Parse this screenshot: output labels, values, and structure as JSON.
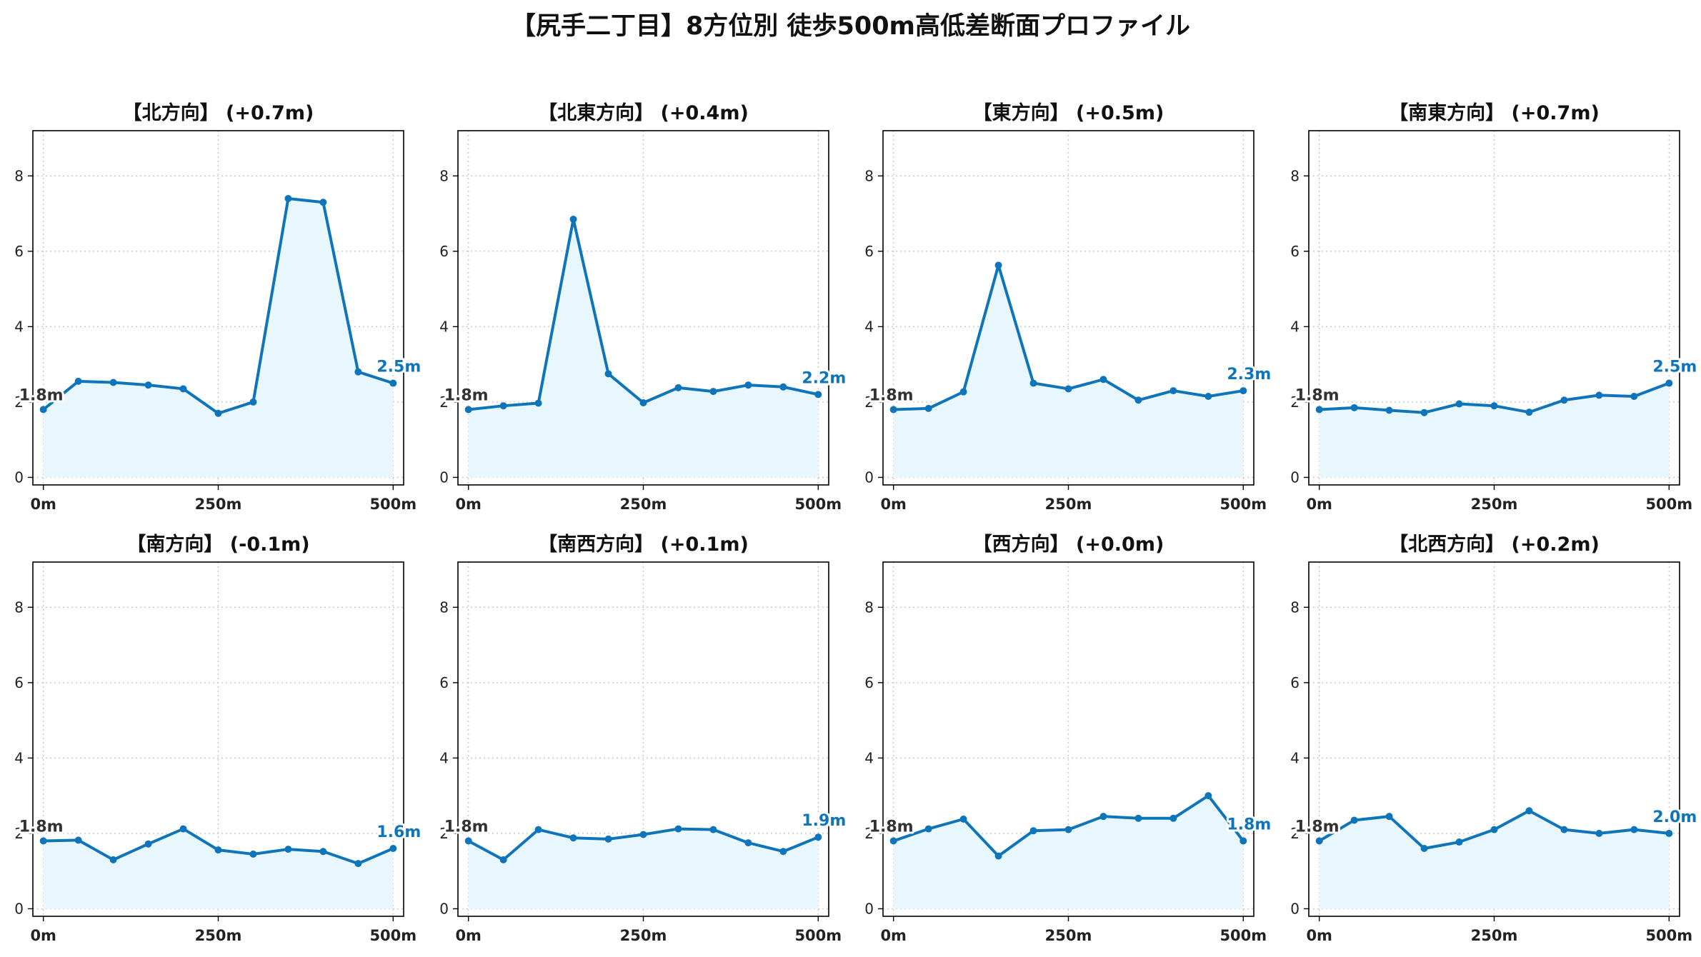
{
  "title": "【尻手二丁目】8方位別 徒歩500m高低差断面プロファイル",
  "colors": {
    "line": "#0f75bb",
    "fill": "#e8f6fd",
    "grid": "#c8c8c8",
    "axis": "#000000",
    "start_label": "#333333"
  },
  "chart_data": [
    {
      "type": "area",
      "title": "【北方向】 (+0.7m)",
      "x": [
        0,
        50,
        100,
        150,
        200,
        250,
        300,
        350,
        400,
        450,
        500
      ],
      "y": [
        1.8,
        2.55,
        2.52,
        2.45,
        2.35,
        1.7,
        2.0,
        7.4,
        7.3,
        2.8,
        2.5
      ],
      "start_label": "1.8m",
      "end_label": "2.5m",
      "xticks": [
        "0m",
        "250m",
        "500m"
      ],
      "xtick_values": [
        0,
        250,
        500
      ],
      "yticks": [
        "0",
        "2",
        "4",
        "6",
        "8"
      ],
      "ylim": [
        -0.2,
        9.2
      ],
      "xlim": [
        -15,
        515
      ],
      "grid": true
    },
    {
      "type": "area",
      "title": "【北東方向】 (+0.4m)",
      "x": [
        0,
        50,
        100,
        150,
        200,
        250,
        300,
        350,
        400,
        450,
        500
      ],
      "y": [
        1.8,
        1.9,
        1.97,
        6.85,
        2.75,
        1.98,
        2.38,
        2.28,
        2.45,
        2.4,
        2.2
      ],
      "start_label": "1.8m",
      "end_label": "2.2m",
      "xticks": [
        "0m",
        "250m",
        "500m"
      ],
      "xtick_values": [
        0,
        250,
        500
      ],
      "yticks": [
        "0",
        "2",
        "4",
        "6",
        "8"
      ],
      "ylim": [
        -0.2,
        9.2
      ],
      "xlim": [
        -15,
        515
      ],
      "grid": true
    },
    {
      "type": "area",
      "title": "【東方向】 (+0.5m)",
      "x": [
        0,
        50,
        100,
        150,
        200,
        250,
        300,
        350,
        400,
        450,
        500
      ],
      "y": [
        1.8,
        1.83,
        2.27,
        5.63,
        2.5,
        2.35,
        2.6,
        2.05,
        2.3,
        2.15,
        2.3
      ],
      "start_label": "1.8m",
      "end_label": "2.3m",
      "xticks": [
        "0m",
        "250m",
        "500m"
      ],
      "xtick_values": [
        0,
        250,
        500
      ],
      "yticks": [
        "0",
        "2",
        "4",
        "6",
        "8"
      ],
      "ylim": [
        -0.2,
        9.2
      ],
      "xlim": [
        -15,
        515
      ],
      "grid": true
    },
    {
      "type": "area",
      "title": "【南東方向】 (+0.7m)",
      "x": [
        0,
        50,
        100,
        150,
        200,
        250,
        300,
        350,
        400,
        450,
        500
      ],
      "y": [
        1.8,
        1.85,
        1.78,
        1.72,
        1.95,
        1.9,
        1.73,
        2.05,
        2.18,
        2.15,
        2.5
      ],
      "start_label": "1.8m",
      "end_label": "2.5m",
      "xticks": [
        "0m",
        "250m",
        "500m"
      ],
      "xtick_values": [
        0,
        250,
        500
      ],
      "yticks": [
        "0",
        "2",
        "4",
        "6",
        "8"
      ],
      "ylim": [
        -0.2,
        9.2
      ],
      "xlim": [
        -15,
        515
      ],
      "grid": true
    },
    {
      "type": "area",
      "title": "【南方向】 (-0.1m)",
      "x": [
        0,
        50,
        100,
        150,
        200,
        250,
        300,
        350,
        400,
        450,
        500
      ],
      "y": [
        1.8,
        1.82,
        1.3,
        1.72,
        2.12,
        1.56,
        1.45,
        1.58,
        1.52,
        1.2,
        1.6
      ],
      "start_label": "1.8m",
      "end_label": "1.6m",
      "xticks": [
        "0m",
        "250m",
        "500m"
      ],
      "xtick_values": [
        0,
        250,
        500
      ],
      "yticks": [
        "0",
        "2",
        "4",
        "6",
        "8"
      ],
      "ylim": [
        -0.2,
        9.2
      ],
      "xlim": [
        -15,
        515
      ],
      "grid": true
    },
    {
      "type": "area",
      "title": "【南西方向】 (+0.1m)",
      "x": [
        0,
        50,
        100,
        150,
        200,
        250,
        300,
        350,
        400,
        450,
        500
      ],
      "y": [
        1.8,
        1.3,
        2.1,
        1.88,
        1.85,
        1.97,
        2.12,
        2.1,
        1.75,
        1.52,
        1.9
      ],
      "start_label": "1.8m",
      "end_label": "1.9m",
      "xticks": [
        "0m",
        "250m",
        "500m"
      ],
      "xtick_values": [
        0,
        250,
        500
      ],
      "yticks": [
        "0",
        "2",
        "4",
        "6",
        "8"
      ],
      "ylim": [
        -0.2,
        9.2
      ],
      "xlim": [
        -15,
        515
      ],
      "grid": true
    },
    {
      "type": "area",
      "title": "【西方向】 (+0.0m)",
      "x": [
        0,
        50,
        100,
        150,
        200,
        250,
        300,
        350,
        400,
        450,
        500
      ],
      "y": [
        1.8,
        2.12,
        2.38,
        1.4,
        2.07,
        2.1,
        2.45,
        2.4,
        2.4,
        3.0,
        1.8
      ],
      "start_label": "1.8m",
      "end_label": "1.8m",
      "xticks": [
        "0m",
        "250m",
        "500m"
      ],
      "xtick_values": [
        0,
        250,
        500
      ],
      "yticks": [
        "0",
        "2",
        "4",
        "6",
        "8"
      ],
      "ylim": [
        -0.2,
        9.2
      ],
      "xlim": [
        -15,
        515
      ],
      "grid": true
    },
    {
      "type": "area",
      "title": "【北西方向】 (+0.2m)",
      "x": [
        0,
        50,
        100,
        150,
        200,
        250,
        300,
        350,
        400,
        450,
        500
      ],
      "y": [
        1.8,
        2.35,
        2.45,
        1.6,
        1.77,
        2.1,
        2.6,
        2.1,
        2.0,
        2.1,
        2.0
      ],
      "start_label": "1.8m",
      "end_label": "2.0m",
      "xticks": [
        "0m",
        "250m",
        "500m"
      ],
      "xtick_values": [
        0,
        250,
        500
      ],
      "yticks": [
        "0",
        "2",
        "4",
        "6",
        "8"
      ],
      "ylim": [
        -0.2,
        9.2
      ],
      "xlim": [
        -15,
        515
      ],
      "grid": true
    }
  ]
}
